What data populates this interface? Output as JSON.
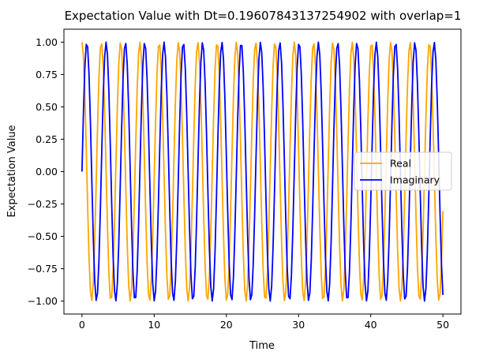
{
  "chart_data": {
    "type": "line",
    "title": "Expectation Value with Dt=0.19607843137254902 with overlap=1",
    "xlabel": "Time",
    "ylabel": "Expectation Value",
    "xlim": [
      -2.5,
      52.5
    ],
    "ylim": [
      -1.1,
      1.1
    ],
    "x_ticks": [
      0,
      10,
      20,
      30,
      40,
      50
    ],
    "x_tick_labels": [
      "0",
      "10",
      "20",
      "30",
      "40",
      "50"
    ],
    "y_ticks": [
      1.0,
      0.75,
      0.5,
      0.25,
      0.0,
      -0.25,
      -0.5,
      -0.75,
      -1.0
    ],
    "y_tick_labels": [
      "1.00",
      "0.75",
      "0.50",
      "0.25",
      "0.00",
      "−0.25",
      "−0.50",
      "−0.75",
      "−1.00"
    ],
    "grid": false,
    "legend_position": "center-right",
    "sampling": {
      "x_start": 0,
      "x_step": 0.19607843137254902,
      "count": 256
    },
    "series": [
      {
        "name": "Real",
        "color": "#ffa500",
        "function": "cos",
        "angular_frequency": 2.35
      },
      {
        "name": "Imaginary",
        "color": "#0000ff",
        "function": "sin",
        "angular_frequency": 2.35
      }
    ]
  }
}
